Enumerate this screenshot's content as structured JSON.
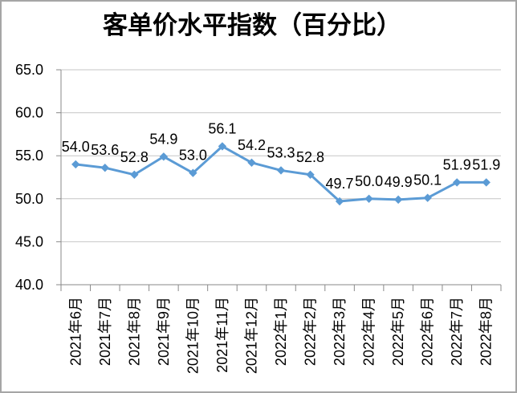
{
  "window": {
    "background": "#ffffff",
    "border_color": "#a6a6a6"
  },
  "chart_data": {
    "type": "line",
    "title": "客单价水平指数（百分比）",
    "categories": [
      "2021年6月",
      "2021年7月",
      "2021年8月",
      "2021年9月",
      "2021年10月",
      "2021年11月",
      "2021年12月",
      "2022年1月",
      "2022年2月",
      "2022年3月",
      "2022年4月",
      "2022年5月",
      "2022年6月",
      "2022年7月",
      "2022年8月"
    ],
    "series": [
      {
        "values": [
          54.0,
          53.6,
          52.8,
          54.9,
          53.0,
          56.1,
          54.2,
          53.3,
          52.8,
          49.7,
          50.0,
          49.9,
          50.1,
          51.9,
          51.9
        ],
        "data_labels": [
          "54.0",
          "53.6",
          "52.8",
          "54.9",
          "53.0",
          "56.1",
          "54.2",
          "53.3",
          "52.8",
          "49.7",
          "50.0",
          "49.9",
          "50.1",
          "51.9",
          "51.9"
        ],
        "color": "#5b9bd5",
        "marker": "diamond"
      }
    ],
    "ylim": [
      40.0,
      65.0
    ],
    "ytick_step": 5.0,
    "yticks": [
      "65.0",
      "60.0",
      "55.0",
      "50.0",
      "45.0",
      "40.0"
    ],
    "grid": true,
    "legend": "none",
    "xlabel": "",
    "ylabel": "",
    "axis_color": "#898989",
    "gridline_color": "#c6c6c6",
    "text_color": "#000000"
  }
}
